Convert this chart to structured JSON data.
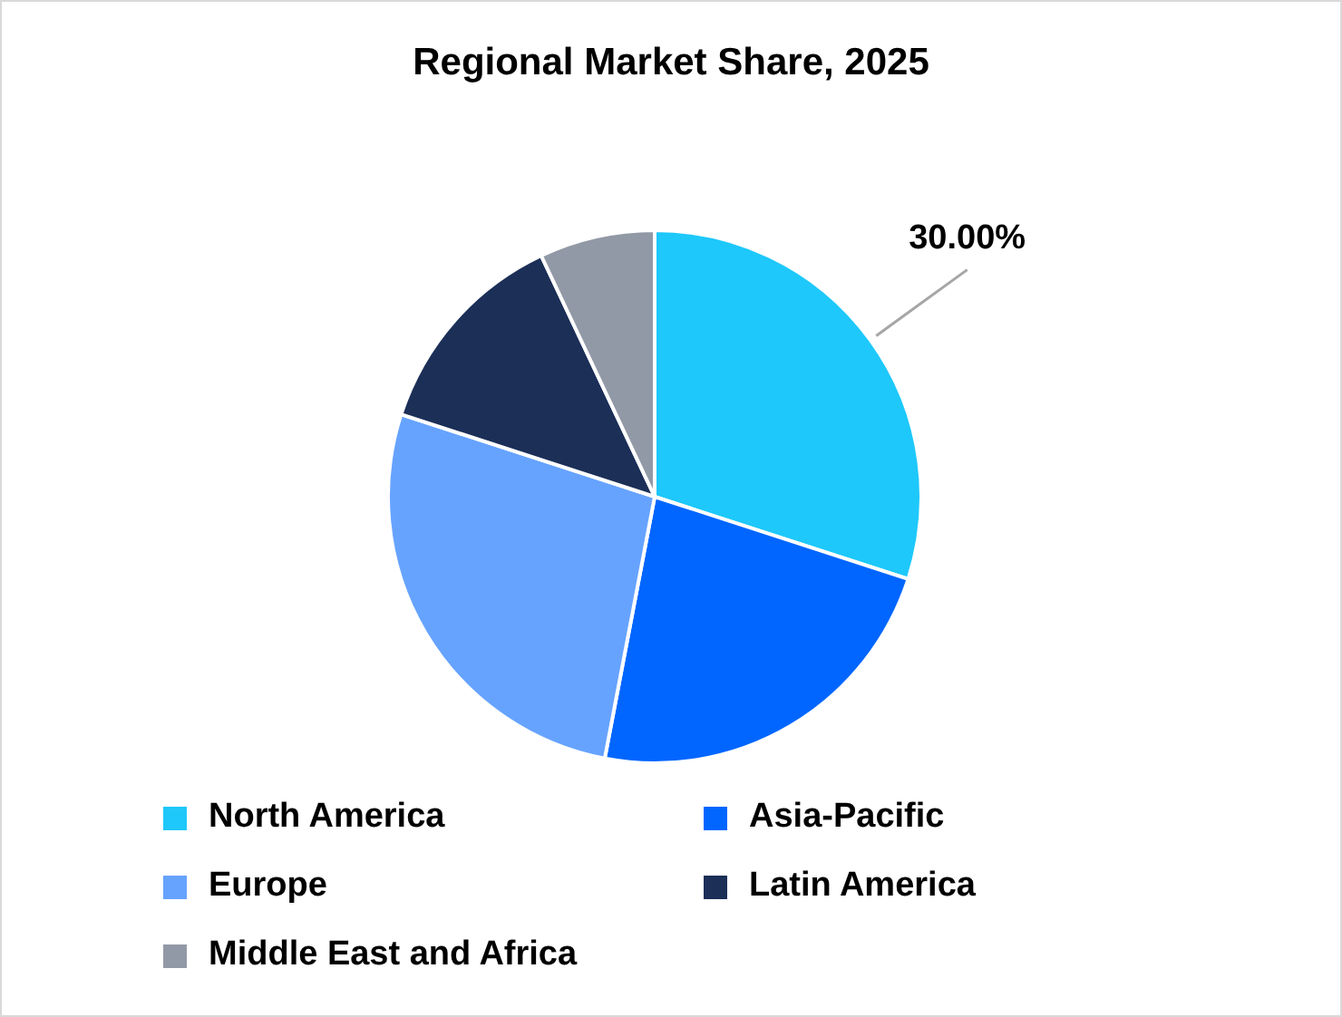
{
  "chart_data": {
    "type": "pie",
    "title": "Regional Market Share, 2025",
    "categories": [
      "North America",
      "Asia-Pacific",
      "Europe",
      "Latin America",
      "Middle East and Africa"
    ],
    "values": [
      30,
      23,
      27,
      13,
      7
    ],
    "colors": [
      "#1ec8fa",
      "#0066ff",
      "#66a3ff",
      "#1b2f57",
      "#9299a6"
    ],
    "value_labels": [
      "30.00%",
      null,
      null,
      null,
      null
    ],
    "legend": "bottom"
  }
}
